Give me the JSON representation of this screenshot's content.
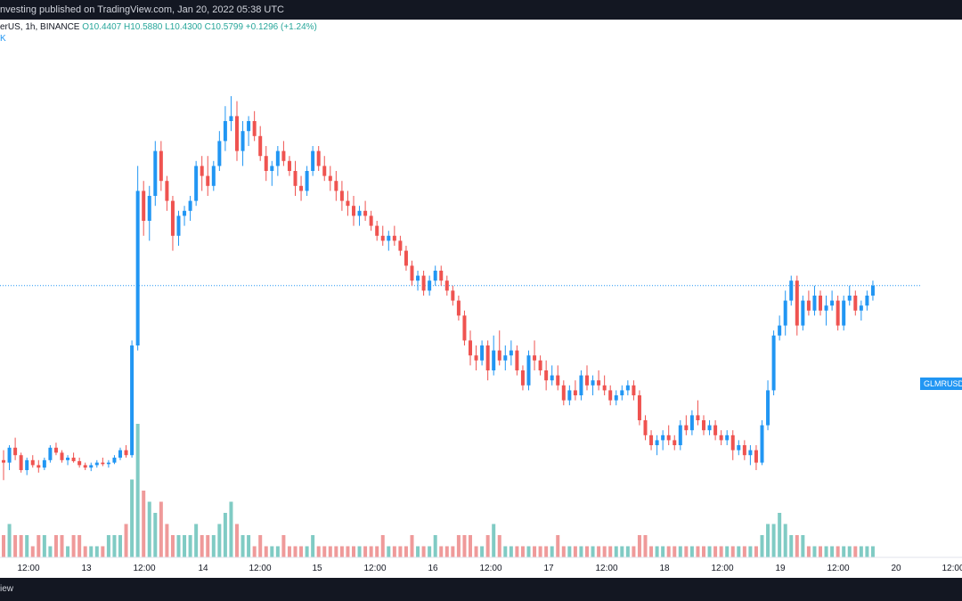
{
  "header": {
    "publish_line": "nvesting published on TradingView.com, Jan 20, 2022 05:38 UTC"
  },
  "legend": {
    "symbol_prefix": "erUS, 1h, BINANCE",
    "open": "O10.4407",
    "high": "H10.5880",
    "low": "L10.4300",
    "close": "C10.5799",
    "change": "+0.1296 (+1.24%)",
    "second_line": "K"
  },
  "price_tag": "GLMRUSDT",
  "footer": {
    "left_text": "iew"
  },
  "colors": {
    "up": "#2196f3",
    "down": "#ef5350",
    "vol_up": "#80cbc4",
    "vol_down": "#ef9a9a",
    "price_line": "#2196f3"
  },
  "chart_data": {
    "type": "candlestick",
    "timeframe": "1h",
    "x_tick_labels": [
      "12:00",
      "13",
      "12:00",
      "14",
      "12:00",
      "15",
      "12:00",
      "16",
      "12:00",
      "17",
      "12:00",
      "18",
      "12:00",
      "19",
      "12:00",
      "20",
      "12:00"
    ],
    "last_price_line": "GLMRUSDT",
    "ohlc": [
      [
        5.0,
        5.2,
        4.6,
        4.95
      ],
      [
        4.95,
        5.3,
        4.8,
        5.25
      ],
      [
        5.25,
        5.45,
        5.0,
        5.1
      ],
      [
        5.1,
        5.15,
        4.75,
        4.8
      ],
      [
        4.8,
        5.05,
        4.7,
        5.0
      ],
      [
        5.0,
        5.1,
        4.85,
        4.9
      ],
      [
        4.9,
        5.0,
        4.75,
        4.85
      ],
      [
        4.85,
        5.05,
        4.8,
        5.0
      ],
      [
        5.0,
        5.3,
        4.95,
        5.25
      ],
      [
        5.25,
        5.35,
        5.1,
        5.15
      ],
      [
        5.15,
        5.2,
        4.95,
        5.0
      ],
      [
        5.0,
        5.1,
        4.9,
        5.05
      ],
      [
        5.05,
        5.15,
        4.95,
        4.98
      ],
      [
        4.98,
        5.05,
        4.85,
        4.9
      ],
      [
        4.9,
        4.95,
        4.8,
        4.85
      ],
      [
        4.85,
        4.95,
        4.78,
        4.9
      ],
      [
        4.9,
        5.0,
        4.85,
        4.95
      ],
      [
        4.95,
        5.05,
        4.88,
        4.92
      ],
      [
        4.92,
        5.0,
        4.85,
        4.95
      ],
      [
        4.95,
        5.1,
        4.92,
        5.05
      ],
      [
        5.05,
        5.25,
        5.0,
        5.2
      ],
      [
        5.2,
        5.3,
        5.05,
        5.1
      ],
      [
        5.1,
        7.4,
        5.05,
        7.3
      ],
      [
        7.3,
        10.9,
        7.2,
        10.4
      ],
      [
        10.4,
        10.6,
        9.5,
        9.8
      ],
      [
        9.8,
        10.5,
        9.4,
        10.3
      ],
      [
        10.3,
        11.4,
        10.1,
        11.2
      ],
      [
        11.2,
        11.4,
        10.4,
        10.6
      ],
      [
        10.6,
        10.7,
        10.0,
        10.2
      ],
      [
        10.2,
        10.3,
        9.2,
        9.5
      ],
      [
        9.5,
        10.0,
        9.3,
        9.9
      ],
      [
        9.9,
        10.1,
        9.7,
        10.0
      ],
      [
        10.0,
        10.3,
        9.8,
        10.2
      ],
      [
        10.2,
        11.0,
        10.1,
        10.9
      ],
      [
        10.9,
        11.1,
        10.4,
        10.7
      ],
      [
        10.7,
        11.1,
        10.3,
        10.5
      ],
      [
        10.5,
        11.0,
        10.4,
        10.9
      ],
      [
        10.9,
        11.6,
        10.8,
        11.4
      ],
      [
        11.4,
        12.1,
        11.2,
        11.8
      ],
      [
        11.8,
        12.3,
        11.6,
        11.9
      ],
      [
        11.9,
        12.2,
        11.0,
        11.2
      ],
      [
        11.2,
        11.8,
        10.9,
        11.6
      ],
      [
        11.6,
        11.9,
        11.3,
        11.8
      ],
      [
        11.8,
        12.0,
        11.4,
        11.5
      ],
      [
        11.5,
        11.7,
        11.0,
        11.1
      ],
      [
        11.1,
        11.3,
        10.6,
        10.8
      ],
      [
        10.8,
        11.0,
        10.5,
        10.9
      ],
      [
        10.9,
        11.3,
        10.7,
        11.2
      ],
      [
        11.2,
        11.4,
        10.9,
        11.0
      ],
      [
        11.0,
        11.1,
        10.7,
        10.8
      ],
      [
        10.8,
        11.0,
        10.3,
        10.5
      ],
      [
        10.5,
        10.7,
        10.2,
        10.4
      ],
      [
        10.4,
        10.9,
        10.3,
        10.8
      ],
      [
        10.8,
        11.3,
        10.7,
        11.2
      ],
      [
        11.2,
        11.3,
        10.8,
        10.9
      ],
      [
        10.9,
        11.1,
        10.6,
        10.7
      ],
      [
        10.7,
        10.9,
        10.4,
        10.6
      ],
      [
        10.6,
        10.8,
        10.2,
        10.4
      ],
      [
        10.4,
        10.6,
        10.0,
        10.2
      ],
      [
        10.2,
        10.4,
        9.9,
        10.1
      ],
      [
        10.1,
        10.3,
        9.7,
        9.9
      ],
      [
        9.9,
        10.1,
        9.7,
        10.0
      ],
      [
        10.0,
        10.2,
        9.8,
        9.9
      ],
      [
        9.9,
        10.0,
        9.6,
        9.7
      ],
      [
        9.7,
        9.8,
        9.4,
        9.5
      ],
      [
        9.5,
        9.7,
        9.3,
        9.4
      ],
      [
        9.4,
        9.6,
        9.2,
        9.5
      ],
      [
        9.5,
        9.7,
        9.3,
        9.4
      ],
      [
        9.4,
        9.5,
        9.1,
        9.2
      ],
      [
        9.2,
        9.3,
        8.8,
        8.9
      ],
      [
        8.9,
        9.0,
        8.5,
        8.6
      ],
      [
        8.6,
        8.8,
        8.4,
        8.7
      ],
      [
        8.7,
        8.8,
        8.3,
        8.4
      ],
      [
        8.4,
        8.7,
        8.3,
        8.6
      ],
      [
        8.6,
        8.9,
        8.5,
        8.8
      ],
      [
        8.8,
        8.9,
        8.5,
        8.6
      ],
      [
        8.6,
        8.7,
        8.3,
        8.4
      ],
      [
        8.4,
        8.5,
        8.1,
        8.2
      ],
      [
        8.2,
        8.3,
        7.8,
        7.9
      ],
      [
        7.9,
        8.0,
        7.3,
        7.4
      ],
      [
        7.4,
        7.6,
        6.9,
        7.1
      ],
      [
        7.1,
        7.3,
        6.8,
        7.0
      ],
      [
        7.0,
        7.4,
        6.9,
        7.3
      ],
      [
        7.3,
        7.4,
        6.6,
        6.8
      ],
      [
        6.8,
        7.5,
        6.7,
        7.2
      ],
      [
        7.2,
        7.6,
        6.9,
        7.0
      ],
      [
        7.0,
        7.3,
        6.8,
        7.1
      ],
      [
        7.1,
        7.4,
        6.9,
        7.2
      ],
      [
        7.2,
        7.3,
        6.7,
        6.8
      ],
      [
        6.8,
        6.9,
        6.4,
        6.5
      ],
      [
        6.5,
        7.2,
        6.4,
        7.1
      ],
      [
        7.1,
        7.4,
        6.8,
        7.0
      ],
      [
        7.0,
        7.1,
        6.7,
        6.8
      ],
      [
        6.8,
        7.0,
        6.4,
        6.6
      ],
      [
        6.6,
        6.9,
        6.5,
        6.7
      ],
      [
        6.7,
        6.9,
        6.4,
        6.5
      ],
      [
        6.5,
        6.6,
        6.1,
        6.2
      ],
      [
        6.2,
        6.5,
        6.1,
        6.4
      ],
      [
        6.4,
        6.6,
        6.2,
        6.3
      ],
      [
        6.3,
        6.8,
        6.2,
        6.7
      ],
      [
        6.7,
        6.9,
        6.4,
        6.5
      ],
      [
        6.5,
        6.7,
        6.3,
        6.6
      ],
      [
        6.6,
        6.8,
        6.4,
        6.5
      ],
      [
        6.5,
        6.7,
        6.3,
        6.4
      ],
      [
        6.4,
        6.5,
        6.1,
        6.2
      ],
      [
        6.2,
        6.4,
        6.1,
        6.3
      ],
      [
        6.3,
        6.5,
        6.2,
        6.4
      ],
      [
        6.4,
        6.6,
        6.3,
        6.5
      ],
      [
        6.5,
        6.6,
        6.2,
        6.3
      ],
      [
        6.3,
        6.4,
        5.7,
        5.8
      ],
      [
        5.8,
        5.9,
        5.4,
        5.5
      ],
      [
        5.5,
        5.6,
        5.2,
        5.3
      ],
      [
        5.3,
        5.5,
        5.1,
        5.4
      ],
      [
        5.4,
        5.6,
        5.2,
        5.5
      ],
      [
        5.5,
        5.7,
        5.3,
        5.4
      ],
      [
        5.4,
        5.5,
        5.2,
        5.3
      ],
      [
        5.3,
        5.8,
        5.2,
        5.7
      ],
      [
        5.7,
        5.9,
        5.5,
        5.6
      ],
      [
        5.6,
        6.0,
        5.5,
        5.9
      ],
      [
        5.9,
        6.2,
        5.7,
        5.8
      ],
      [
        5.8,
        5.9,
        5.5,
        5.6
      ],
      [
        5.6,
        5.8,
        5.5,
        5.7
      ],
      [
        5.7,
        5.8,
        5.4,
        5.5
      ],
      [
        5.5,
        5.6,
        5.3,
        5.4
      ],
      [
        5.4,
        5.6,
        5.3,
        5.5
      ],
      [
        5.5,
        5.6,
        5.0,
        5.2
      ],
      [
        5.2,
        5.4,
        5.1,
        5.3
      ],
      [
        5.3,
        5.4,
        5.0,
        5.1
      ],
      [
        5.1,
        5.3,
        4.9,
        5.2
      ],
      [
        5.2,
        5.3,
        4.8,
        4.95
      ],
      [
        4.95,
        5.8,
        4.9,
        5.7
      ],
      [
        5.7,
        6.6,
        5.6,
        6.4
      ],
      [
        6.4,
        7.6,
        6.3,
        7.5
      ],
      [
        7.5,
        7.9,
        7.4,
        7.7
      ],
      [
        7.7,
        8.4,
        7.5,
        8.2
      ],
      [
        8.2,
        8.7,
        8.1,
        8.6
      ],
      [
        8.6,
        8.7,
        7.5,
        7.7
      ],
      [
        7.7,
        8.3,
        7.6,
        8.2
      ],
      [
        8.2,
        8.4,
        7.9,
        8.0
      ],
      [
        8.0,
        8.5,
        7.9,
        8.3
      ],
      [
        8.3,
        8.4,
        7.9,
        8.0
      ],
      [
        8.0,
        8.3,
        7.7,
        8.1
      ],
      [
        8.1,
        8.4,
        8.0,
        8.2
      ],
      [
        8.2,
        8.3,
        7.6,
        7.7
      ],
      [
        7.7,
        8.3,
        7.6,
        8.2
      ],
      [
        8.2,
        8.5,
        8.1,
        8.3
      ],
      [
        8.3,
        8.4,
        7.9,
        8.0
      ],
      [
        8.0,
        8.2,
        7.8,
        8.1
      ],
      [
        8.1,
        8.4,
        8.0,
        8.3
      ],
      [
        8.3,
        8.6,
        8.2,
        8.5
      ]
    ],
    "volume": [
      2,
      3,
      2,
      2,
      2,
      1,
      2,
      2,
      1,
      2,
      2,
      1,
      2,
      2,
      1,
      1,
      1,
      1,
      2,
      2,
      2,
      3,
      7,
      12,
      6,
      5,
      4,
      5,
      3,
      2,
      2,
      2,
      2,
      3,
      2,
      2,
      2,
      3,
      4,
      5,
      3,
      2,
      2,
      1,
      2,
      1,
      1,
      1,
      2,
      1,
      1,
      1,
      1,
      2,
      1,
      1,
      1,
      1,
      1,
      1,
      1,
      1,
      1,
      1,
      1,
      2,
      1,
      1,
      1,
      1,
      2,
      1,
      1,
      1,
      2,
      1,
      1,
      1,
      2,
      2,
      2,
      1,
      1,
      2,
      3,
      2,
      1,
      1,
      1,
      1,
      1,
      1,
      1,
      1,
      1,
      2,
      1,
      1,
      1,
      1,
      1,
      1,
      1,
      1,
      1,
      1,
      1,
      1,
      1,
      2,
      2,
      1,
      1,
      1,
      1,
      1,
      1,
      1,
      1,
      1,
      1,
      1,
      1,
      1,
      1,
      1,
      1,
      1,
      1,
      1,
      2,
      3,
      3,
      4,
      3,
      2,
      2,
      2,
      1,
      1,
      1,
      1,
      1,
      1,
      1,
      1,
      1,
      1,
      1,
      1
    ]
  }
}
